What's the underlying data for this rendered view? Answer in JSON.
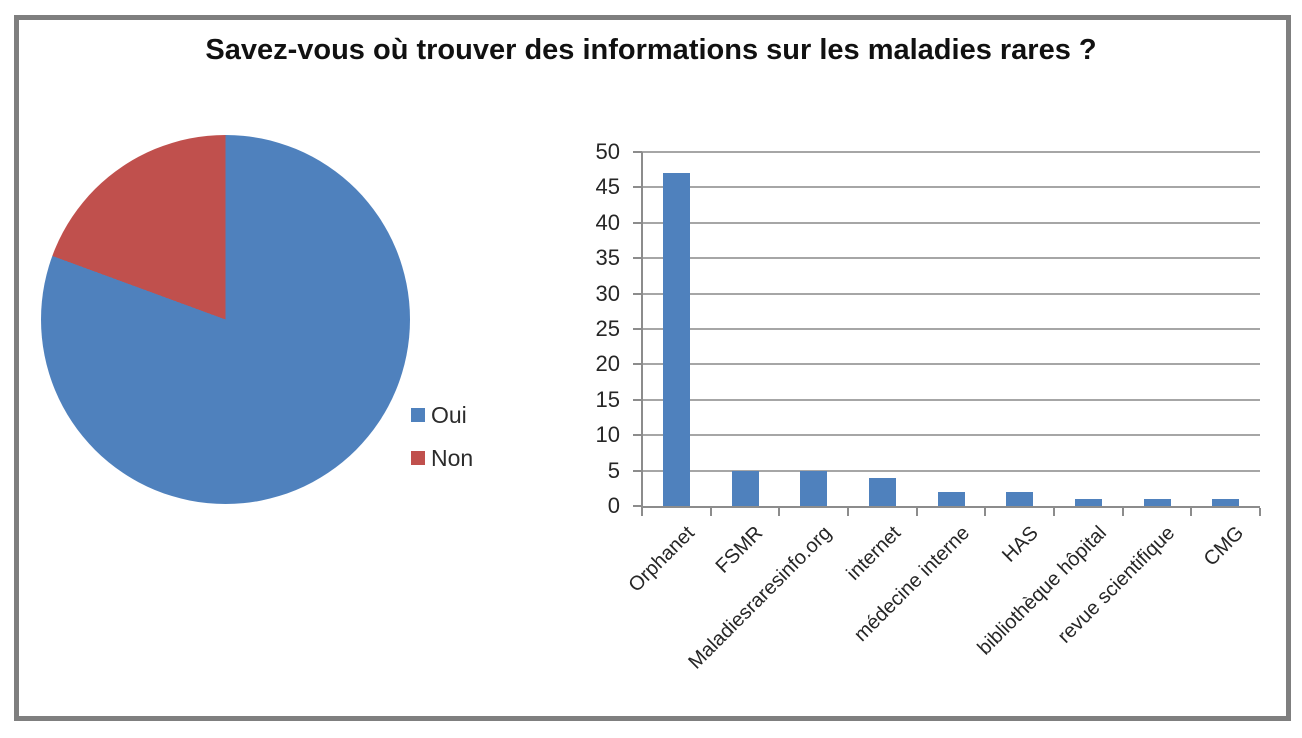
{
  "title": "Savez-vous où trouver des informations sur les maladies rares ?",
  "palette": {
    "background": "#FFFFFF",
    "frame_border": "#7F7F7F",
    "series_blue": "#4F81BD",
    "series_red": "#C0504D",
    "gridline": "#A6A6A6",
    "axis_line": "#8C8C8C",
    "tick_text": "#262626",
    "title_text": "#111111",
    "legend_text": "#2B2B2B"
  },
  "chart_data": [
    {
      "type": "pie",
      "labels": [
        "Oui",
        "Non"
      ],
      "values_percent": [
        80.6,
        19.4
      ],
      "colors": [
        "#4F81BD",
        "#C0504D"
      ],
      "start_angle_deg": 0,
      "clockwise": true,
      "legend_position": "right-middle"
    },
    {
      "type": "bar",
      "categories": [
        "Orphanet",
        "FSMR",
        "Maladiesraresinfo.org",
        "internet",
        "médecine interne",
        "HAS",
        "bibliothèque hôpital",
        "revue scientifique",
        "CMG"
      ],
      "values": [
        47,
        5,
        5,
        4,
        2,
        2,
        1,
        1,
        1
      ],
      "bar_color": "#4F81BD",
      "ylim": [
        0,
        50
      ],
      "ytick_step": 5,
      "ytick_labels": [
        "0",
        "5",
        "10",
        "15",
        "20",
        "25",
        "30",
        "35",
        "40",
        "45",
        "50"
      ],
      "grid": true,
      "xlabel": "",
      "ylabel": ""
    }
  ]
}
